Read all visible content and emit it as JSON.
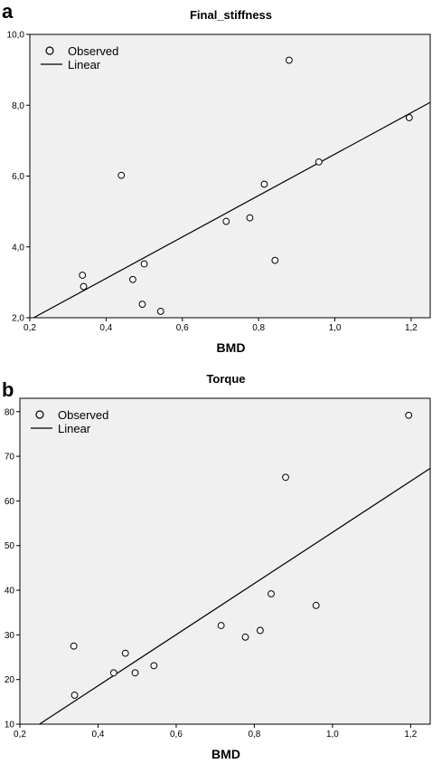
{
  "panels": {
    "a": "a",
    "b": "b"
  },
  "chart_data": [
    {
      "type": "scatter",
      "title": "Final_stiffness",
      "xlabel": "BMD",
      "ylabel": "",
      "xlim": [
        0.2,
        1.25
      ],
      "ylim": [
        2.0,
        10.0
      ],
      "xticks": [
        "0,2",
        "0,4",
        "0,6",
        "0,8",
        "1,0",
        "1,2"
      ],
      "yticks": [
        "2,0",
        "4,0",
        "6,0",
        "8,0",
        "10,0"
      ],
      "legend": [
        "Observed",
        "Linear"
      ],
      "legend_position": "top-left",
      "background": "#f0f0f0",
      "series": [
        {
          "name": "Observed",
          "x": [
            0.338,
            0.341,
            0.44,
            0.47,
            0.495,
            0.5,
            0.543,
            0.715,
            0.777,
            0.815,
            0.843,
            0.88,
            0.958,
            1.195
          ],
          "y": [
            3.2,
            2.88,
            6.02,
            3.08,
            2.38,
            3.52,
            2.18,
            4.72,
            4.82,
            5.77,
            3.62,
            9.27,
            6.4,
            7.65
          ]
        },
        {
          "name": "Linear",
          "x": [
            0.21,
            1.25
          ],
          "y": [
            2.0,
            8.08
          ]
        }
      ]
    },
    {
      "type": "scatter",
      "title": "Torque",
      "xlabel": "BMD",
      "ylabel": "",
      "xlim": [
        0.2,
        1.25
      ],
      "ylim": [
        10,
        83
      ],
      "xticks": [
        "0,2",
        "0,4",
        "0,6",
        "0,8",
        "1,0",
        "1,2"
      ],
      "yticks": [
        "10",
        "20",
        "30",
        "40",
        "50",
        "60",
        "70",
        "80"
      ],
      "legend": [
        "Observed",
        "Linear"
      ],
      "legend_position": "top-left",
      "background": "#f0f0f0",
      "series": [
        {
          "name": "Observed",
          "x": [
            0.338,
            0.34,
            0.44,
            0.47,
            0.495,
            0.543,
            0.715,
            0.777,
            0.815,
            0.843,
            0.88,
            0.958,
            1.195
          ],
          "y": [
            27.5,
            16.5,
            21.5,
            25.9,
            21.5,
            23.1,
            32.1,
            29.5,
            31.0,
            39.2,
            65.3,
            36.6,
            79.2
          ]
        },
        {
          "name": "Linear",
          "x": [
            0.25,
            1.25
          ],
          "y": [
            10,
            67.3
          ]
        }
      ]
    }
  ]
}
